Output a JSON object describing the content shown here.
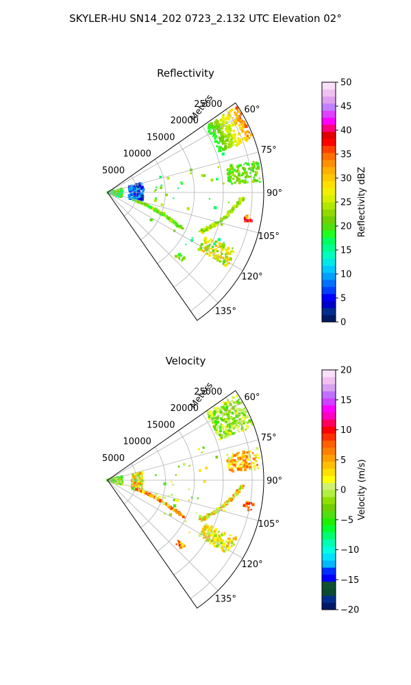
{
  "figure_title": "SKYLER-HU  SN14_202  0723_2.132 UTC Elevation 02°",
  "range_label": "Meters",
  "colors": {
    "grid": "#b0b0b0",
    "axis": "#000000",
    "background": "#ffffff"
  },
  "chart_data": [
    {
      "type": "heatmap",
      "title": "Reflectivity",
      "projection": "polar-sector",
      "theta_range_deg": [
        55,
        145
      ],
      "theta_ticks": [
        "60°",
        "75°",
        "90°",
        "105°",
        "120°",
        "135°"
      ],
      "theta_tick_values": [
        60,
        75,
        90,
        105,
        120,
        135
      ],
      "range_ticks": [
        "5000",
        "10000",
        "15000",
        "20000",
        "25000"
      ],
      "range_tick_values": [
        5000,
        10000,
        15000,
        20000,
        25000
      ],
      "range_max": 27000,
      "range_label": "Meters",
      "grid": true,
      "colorbar": {
        "label": "Reflectivity dBZ",
        "range": [
          0,
          50
        ],
        "ticks": [
          "0",
          "5",
          "10",
          "15",
          "20",
          "25",
          "30",
          "35",
          "40",
          "45",
          "50"
        ],
        "tick_values": [
          0,
          5,
          10,
          15,
          20,
          25,
          30,
          35,
          40,
          45,
          50
        ],
        "colors": [
          "#001a66",
          "#002e8c",
          "#0000c8",
          "#0000ff",
          "#0040ff",
          "#0070ff",
          "#00a0ff",
          "#00c8ff",
          "#00e8e8",
          "#00ffc0",
          "#00ff90",
          "#00ff60",
          "#20ff20",
          "#50e010",
          "#70d000",
          "#90d800",
          "#b0e800",
          "#d8f000",
          "#f0f000",
          "#ffe000",
          "#ffc800",
          "#ffb000",
          "#ff9000",
          "#ff7000",
          "#ff4000",
          "#ff0000",
          "#e00000",
          "#ff0080",
          "#ff00ff",
          "#e040ff",
          "#c080ff",
          "#e0a0f0",
          "#f0c0f0",
          "#f8e0f8"
        ]
      },
      "echoes": [
        {
          "name": "near-clutter",
          "theta": [
            75,
            108
          ],
          "r": [
            0,
            2600
          ],
          "values": [
            14,
            24
          ]
        },
        {
          "name": "blue-arc",
          "theta": [
            74,
            106
          ],
          "r": [
            3800,
            6200
          ],
          "values": [
            2,
            12
          ]
        },
        {
          "name": "storm-cell-ne",
          "theta": [
            56,
            70
          ],
          "r": [
            20500,
            26800
          ],
          "values": [
            18,
            37
          ]
        },
        {
          "name": "line-east",
          "theta": [
            92,
            113
          ],
          "r": [
            17500,
            23500
          ],
          "values": [
            20,
            28
          ]
        },
        {
          "name": "band-southeast",
          "theta": [
            106,
            116
          ],
          "r": [
            5000,
            14500
          ],
          "values": [
            18,
            26
          ]
        },
        {
          "name": "cluster-south",
          "theta": [
            114,
            122
          ],
          "r": [
            18500,
            24500
          ],
          "values": [
            20,
            32
          ]
        },
        {
          "name": "streak-east",
          "theta": [
            78,
            86
          ],
          "r": [
            21000,
            26500
          ],
          "values": [
            18,
            24
          ]
        },
        {
          "name": "spot-far-east",
          "theta": [
            99,
            102
          ],
          "r": [
            24000,
            25500
          ],
          "values": [
            30,
            45
          ]
        },
        {
          "name": "spot-south",
          "theta": [
            130,
            133
          ],
          "r": [
            16000,
            17500
          ],
          "values": [
            18,
            24
          ]
        },
        {
          "name": "speckles",
          "theta": [
            70,
            125
          ],
          "r": [
            8000,
            22000
          ],
          "values": [
            15,
            25
          ]
        }
      ]
    },
    {
      "type": "heatmap",
      "title": "Velocity",
      "projection": "polar-sector",
      "theta_range_deg": [
        55,
        145
      ],
      "theta_ticks": [
        "60°",
        "75°",
        "90°",
        "105°",
        "120°",
        "135°"
      ],
      "theta_tick_values": [
        60,
        75,
        90,
        105,
        120,
        135
      ],
      "range_ticks": [
        "5000",
        "10000",
        "15000",
        "20000",
        "25000"
      ],
      "range_tick_values": [
        5000,
        10000,
        15000,
        20000,
        25000
      ],
      "range_max": 27000,
      "range_label": "Meters",
      "grid": true,
      "colorbar": {
        "label": "Velocity (m/s)",
        "range": [
          -20,
          20
        ],
        "ticks": [
          "−20",
          "−15",
          "−10",
          "−5",
          "0",
          "5",
          "10",
          "15",
          "20"
        ],
        "tick_values": [
          -20,
          -15,
          -10,
          -5,
          0,
          5,
          10,
          15,
          20
        ],
        "colors": [
          "#001a66",
          "#002e8c",
          "#0a4a30",
          "#105030",
          "#0000ff",
          "#0030ff",
          "#00b8ff",
          "#00e0ff",
          "#00ffe0",
          "#00ffb0",
          "#00ff70",
          "#00ff30",
          "#20f000",
          "#50e010",
          "#70d000",
          "#90e000",
          "#b0f040",
          "#d0f070",
          "#ffff00",
          "#ffe000",
          "#ffc000",
          "#ffa000",
          "#ff8000",
          "#ff6000",
          "#ff3000",
          "#ff0000",
          "#ff0060",
          "#ff00c0",
          "#ff00ff",
          "#d040ff",
          "#c070ff",
          "#d8a0f0",
          "#f0c0f0",
          "#f8e0f8"
        ]
      },
      "echoes": [
        {
          "name": "near-clutter",
          "theta": [
            75,
            108
          ],
          "r": [
            0,
            2600
          ],
          "values": [
            -6,
            2
          ]
        },
        {
          "name": "inner-arc",
          "theta": [
            76,
            110
          ],
          "r": [
            4200,
            6200
          ],
          "values": [
            -4,
            8
          ]
        },
        {
          "name": "storm-cell-ne",
          "theta": [
            56,
            70
          ],
          "r": [
            20500,
            26800
          ],
          "values": [
            -5,
            2
          ]
        },
        {
          "name": "line-east",
          "theta": [
            92,
            113
          ],
          "r": [
            17500,
            23500
          ],
          "values": [
            -2,
            8
          ]
        },
        {
          "name": "band-southeast",
          "theta": [
            106,
            116
          ],
          "r": [
            5000,
            14500
          ],
          "values": [
            0,
            10
          ]
        },
        {
          "name": "cluster-south",
          "theta": [
            114,
            122
          ],
          "r": [
            18500,
            24500
          ],
          "values": [
            -3,
            6
          ]
        },
        {
          "name": "streak-east",
          "theta": [
            78,
            86
          ],
          "r": [
            21000,
            26500
          ],
          "values": [
            0,
            8
          ]
        },
        {
          "name": "spot-far-east",
          "theta": [
            99,
            102
          ],
          "r": [
            24000,
            25500
          ],
          "values": [
            5,
            10
          ]
        },
        {
          "name": "spot-south",
          "theta": [
            130,
            133
          ],
          "r": [
            16000,
            17500
          ],
          "values": [
            0,
            10
          ]
        },
        {
          "name": "speckles",
          "theta": [
            70,
            125
          ],
          "r": [
            8000,
            22000
          ],
          "values": [
            -5,
            5
          ]
        }
      ]
    }
  ]
}
